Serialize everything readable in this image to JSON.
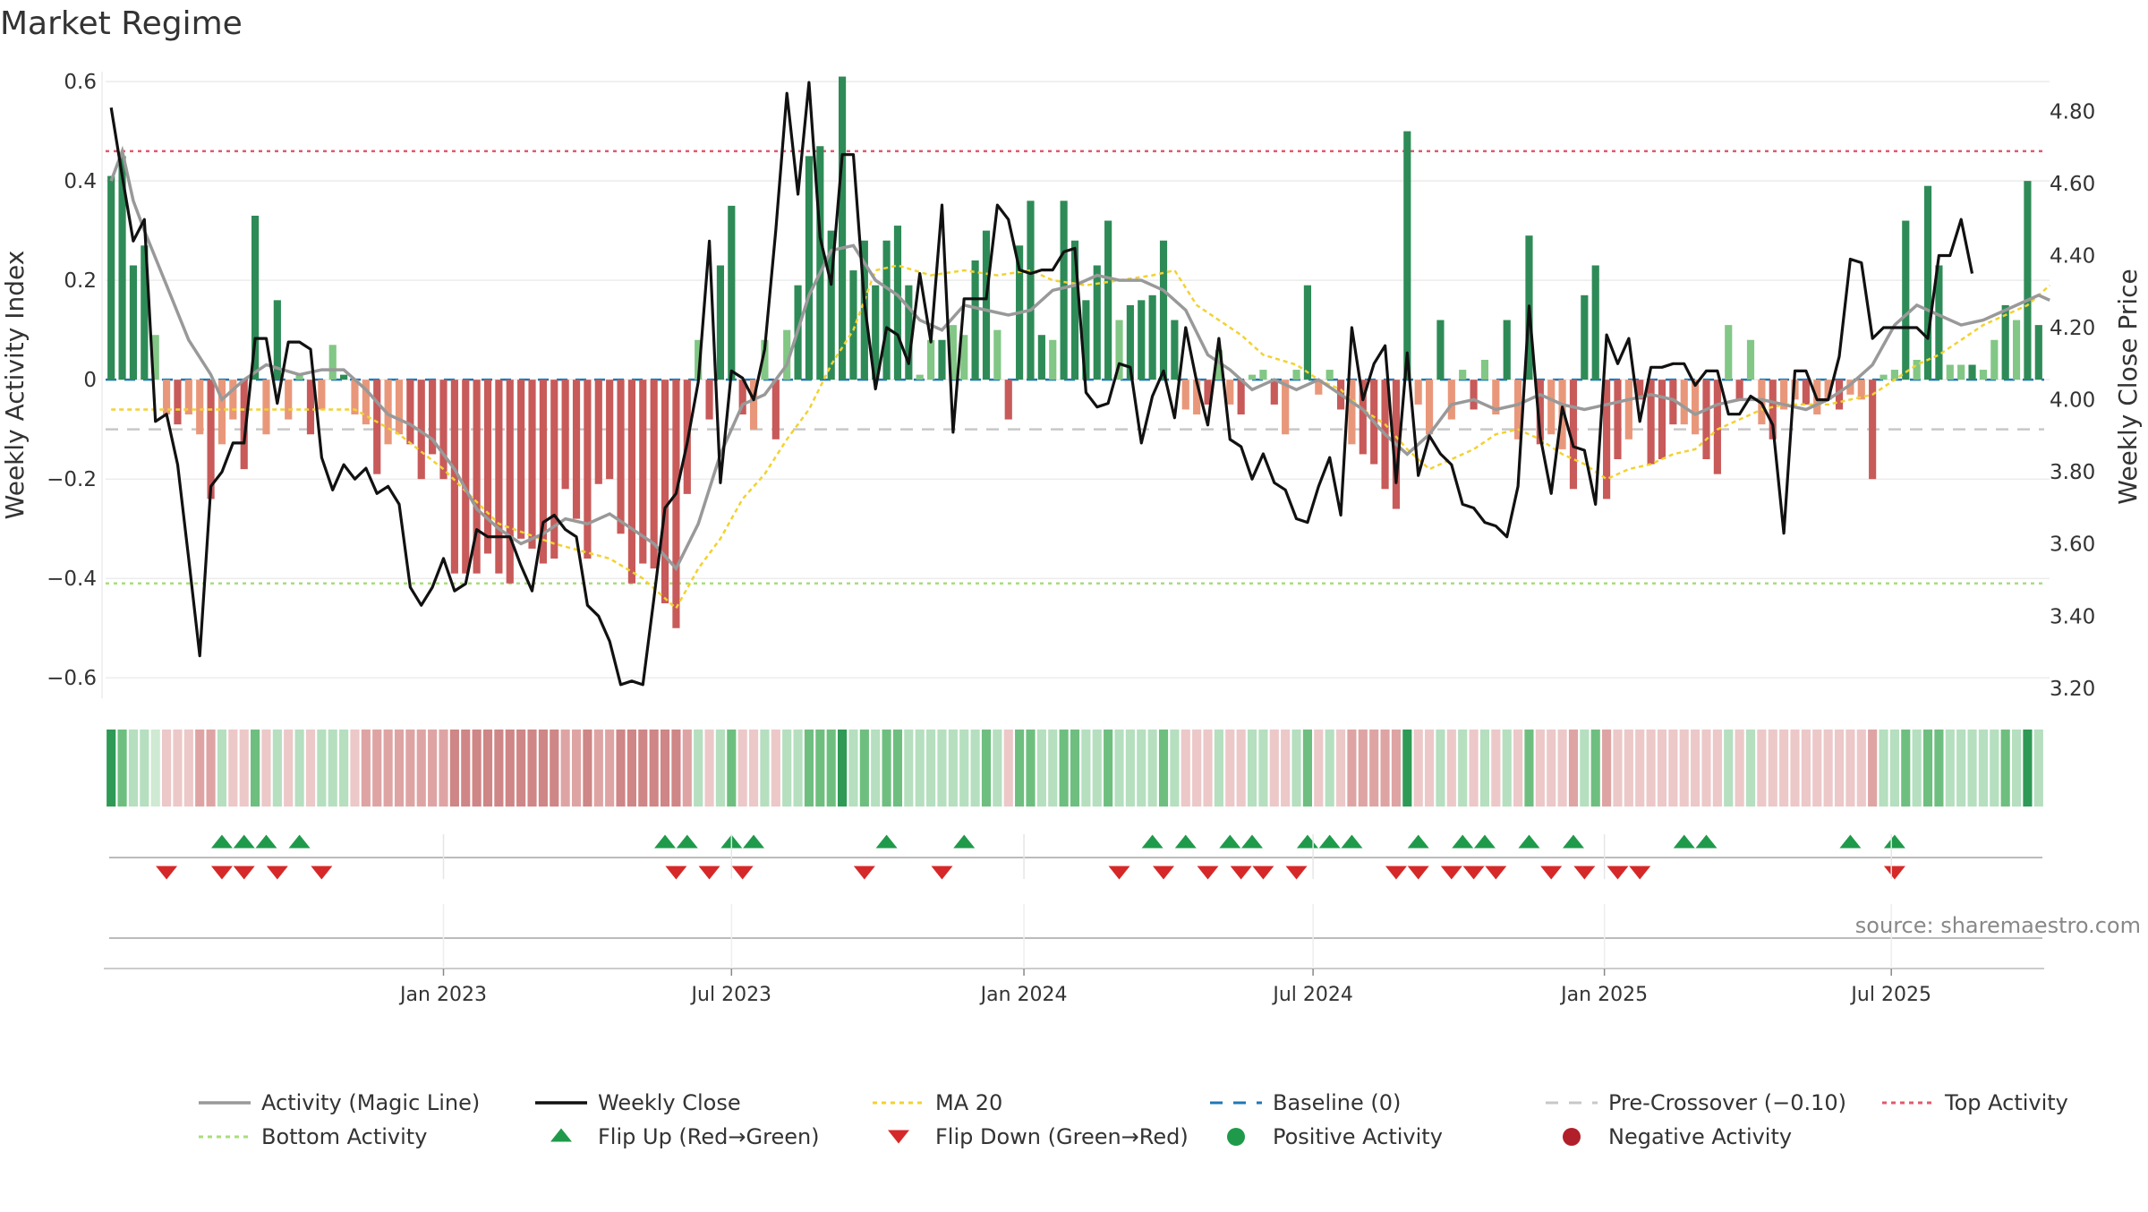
{
  "chart_data": {
    "type": "bar",
    "title": "Market Regime",
    "ylabel": "Weekly Activity Index",
    "ylabel_right": "Weekly Close Price",
    "source": "source: sharemaestro.com",
    "ylim": [
      -0.65,
      0.62
    ],
    "ylim_right": [
      3.16,
      4.91
    ],
    "yticks": [
      -0.6,
      -0.4,
      -0.2,
      0,
      0.2,
      0.4,
      0.6
    ],
    "ytick_labels": [
      "−0.6",
      "−0.4",
      "−0.2",
      "0",
      "0.2",
      "0.4",
      "0.6"
    ],
    "yticks_right": [
      3.2,
      3.4,
      3.6,
      3.8,
      4.0,
      4.2,
      4.4,
      4.6,
      4.8
    ],
    "ytick_right_labels": [
      "3.20",
      "3.40",
      "3.60",
      "3.80",
      "4.00",
      "4.20",
      "4.40",
      "4.60",
      "4.80"
    ],
    "xticks": [
      {
        "label": "Jan 2023",
        "week": 30.5
      },
      {
        "label": "Jul 2023",
        "week": 56.5
      },
      {
        "label": "Jan 2024",
        "week": 82.9
      },
      {
        "label": "Jul 2024",
        "week": 109
      },
      {
        "label": "Jan 2025",
        "week": 135.3
      },
      {
        "label": "Jul 2025",
        "week": 161.2
      }
    ],
    "reference_lines": {
      "top_activity": 0.46,
      "bottom_activity": -0.41,
      "pre_crossover": -0.1,
      "baseline": 0
    },
    "weekly_activity": [
      0.41,
      0.45,
      0.23,
      0.27,
      0.09,
      -0.07,
      -0.09,
      -0.07,
      -0.11,
      -0.24,
      -0.13,
      -0.08,
      -0.18,
      0.33,
      -0.11,
      0.16,
      -0.08,
      0.01,
      -0.11,
      -0.06,
      0.07,
      0.01,
      -0.07,
      -0.09,
      -0.19,
      -0.13,
      -0.11,
      -0.13,
      -0.2,
      -0.15,
      -0.2,
      -0.39,
      -0.39,
      -0.39,
      -0.35,
      -0.39,
      -0.41,
      -0.32,
      -0.34,
      -0.37,
      -0.36,
      -0.22,
      -0.28,
      -0.36,
      -0.21,
      -0.2,
      -0.31,
      -0.41,
      -0.37,
      -0.38,
      -0.45,
      -0.5,
      -0.23,
      0.08,
      -0.08,
      0.23,
      0.35,
      -0.07,
      -0.1,
      0.08,
      -0.12,
      0.1,
      0.19,
      0.45,
      0.47,
      0.3,
      0.61,
      0.22,
      0.28,
      0.19,
      0.28,
      0.31,
      0.19,
      0.01,
      0.08,
      0.08,
      0.11,
      0.09,
      0.24,
      0.3,
      0.1,
      -0.08,
      0.27,
      0.36,
      0.09,
      0.08,
      0.36,
      0.28,
      0.16,
      0.23,
      0.32,
      0.12,
      0.15,
      0.16,
      0.17,
      0.28,
      0.12,
      -0.06,
      -0.07,
      -0.05,
      0.06,
      -0.05,
      -0.07,
      0.01,
      0.02,
      -0.05,
      -0.11,
      0.02,
      0.19,
      -0.03,
      0.02,
      -0.06,
      -0.13,
      -0.15,
      -0.17,
      -0.22,
      -0.26,
      0.5,
      -0.05,
      -0.11,
      0.12,
      -0.08,
      0.02,
      -0.06,
      0.04,
      -0.07,
      0.12,
      -0.12,
      0.29,
      -0.13,
      -0.11,
      -0.14,
      -0.22,
      0.17,
      0.23,
      -0.24,
      -0.16,
      -0.12,
      -0.04,
      -0.17,
      -0.16,
      -0.09,
      -0.09,
      -0.11,
      -0.16,
      -0.19,
      0.11,
      -0.04,
      0.08,
      -0.09,
      -0.12,
      -0.06,
      -0.04,
      -0.05,
      -0.07,
      -0.04,
      -0.06,
      -0.03,
      -0.04,
      -0.2,
      0.01,
      0.02,
      0.32,
      0.04,
      0.39,
      0.23,
      0.03,
      0.03,
      0.03,
      0.02,
      0.08,
      0.15,
      0.12,
      0.4,
      0.11
    ],
    "weekly_close": [
      4.81,
      4.62,
      4.44,
      4.5,
      3.94,
      3.96,
      3.82,
      3.56,
      3.29,
      3.76,
      3.8,
      3.88,
      3.88,
      4.17,
      4.17,
      3.99,
      4.16,
      4.16,
      4.14,
      3.84,
      3.75,
      3.82,
      3.78,
      3.81,
      3.74,
      3.76,
      3.71,
      3.48,
      3.43,
      3.48,
      3.56,
      3.47,
      3.49,
      3.64,
      3.62,
      3.62,
      3.62,
      3.54,
      3.47,
      3.66,
      3.68,
      3.64,
      3.62,
      3.43,
      3.4,
      3.33,
      3.21,
      3.22,
      3.21,
      3.45,
      3.7,
      3.74,
      3.88,
      4.05,
      4.44,
      3.77,
      4.08,
      4.06,
      4.0,
      4.14,
      4.47,
      4.85,
      4.57,
      4.88,
      4.45,
      4.32,
      4.68,
      4.68,
      4.27,
      4.03,
      4.2,
      4.18,
      4.1,
      4.35,
      4.16,
      4.54,
      3.91,
      4.28,
      4.28,
      4.28,
      4.54,
      4.5,
      4.36,
      4.35,
      4.36,
      4.36,
      4.41,
      4.42,
      4.02,
      3.98,
      3.99,
      4.1,
      4.09,
      3.88,
      4.01,
      4.08,
      3.95,
      4.2,
      4.05,
      3.93,
      4.17,
      3.89,
      3.87,
      3.78,
      3.85,
      3.77,
      3.75,
      3.67,
      3.66,
      3.76,
      3.84,
      3.68,
      4.2,
      4.0,
      4.1,
      4.15,
      3.77,
      4.13,
      3.79,
      3.9,
      3.85,
      3.82,
      3.71,
      3.7,
      3.66,
      3.65,
      3.62,
      3.76,
      4.26,
      3.9,
      3.74,
      3.98,
      3.87,
      3.86,
      3.71,
      4.18,
      4.1,
      4.17,
      3.94,
      4.09,
      4.09,
      4.1,
      4.1,
      4.04,
      4.08,
      4.08,
      3.96,
      3.96,
      4.01,
      3.99,
      3.93,
      3.63,
      4.08,
      4.08,
      4.0,
      4.0,
      4.12,
      4.39,
      4.38,
      4.17,
      4.2,
      4.2,
      4.2,
      4.2,
      4.17,
      4.4,
      4.4,
      4.5,
      4.35
    ],
    "magic_line_points": [
      [
        0,
        0.4
      ],
      [
        1,
        0.46
      ],
      [
        2,
        0.36
      ],
      [
        3,
        0.3
      ],
      [
        5,
        0.19
      ],
      [
        7,
        0.08
      ],
      [
        9,
        0.01
      ],
      [
        10,
        -0.04
      ],
      [
        12,
        0.0
      ],
      [
        14,
        0.03
      ],
      [
        17,
        0.01
      ],
      [
        19,
        0.02
      ],
      [
        21,
        0.02
      ],
      [
        23,
        -0.02
      ],
      [
        25,
        -0.07
      ],
      [
        27,
        -0.09
      ],
      [
        29,
        -0.12
      ],
      [
        31,
        -0.18
      ],
      [
        33,
        -0.26
      ],
      [
        35,
        -0.3
      ],
      [
        37,
        -0.33
      ],
      [
        39,
        -0.31
      ],
      [
        41,
        -0.28
      ],
      [
        43,
        -0.29
      ],
      [
        45,
        -0.27
      ],
      [
        47,
        -0.3
      ],
      [
        49,
        -0.33
      ],
      [
        51,
        -0.38
      ],
      [
        53,
        -0.29
      ],
      [
        55,
        -0.15
      ],
      [
        57,
        -0.05
      ],
      [
        59,
        -0.03
      ],
      [
        61,
        0.03
      ],
      [
        63,
        0.17
      ],
      [
        65,
        0.26
      ],
      [
        67,
        0.27
      ],
      [
        69,
        0.2
      ],
      [
        71,
        0.17
      ],
      [
        73,
        0.12
      ],
      [
        75,
        0.1
      ],
      [
        77,
        0.15
      ],
      [
        79,
        0.14
      ],
      [
        81,
        0.13
      ],
      [
        83,
        0.14
      ],
      [
        85,
        0.18
      ],
      [
        87,
        0.19
      ],
      [
        89,
        0.21
      ],
      [
        91,
        0.2
      ],
      [
        93,
        0.2
      ],
      [
        95,
        0.18
      ],
      [
        97,
        0.14
      ],
      [
        99,
        0.05
      ],
      [
        101,
        0.02
      ],
      [
        103,
        -0.02
      ],
      [
        105,
        0.0
      ],
      [
        107,
        -0.02
      ],
      [
        109,
        0.0
      ],
      [
        111,
        -0.03
      ],
      [
        113,
        -0.06
      ],
      [
        115,
        -0.11
      ],
      [
        117,
        -0.15
      ],
      [
        119,
        -0.11
      ],
      [
        121,
        -0.05
      ],
      [
        123,
        -0.04
      ],
      [
        125,
        -0.06
      ],
      [
        127,
        -0.05
      ],
      [
        129,
        -0.03
      ],
      [
        131,
        -0.05
      ],
      [
        133,
        -0.06
      ],
      [
        135,
        -0.05
      ],
      [
        137,
        -0.04
      ],
      [
        139,
        -0.03
      ],
      [
        141,
        -0.04
      ],
      [
        143,
        -0.07
      ],
      [
        145,
        -0.05
      ],
      [
        147,
        -0.04
      ],
      [
        149,
        -0.04
      ],
      [
        151,
        -0.05
      ],
      [
        153,
        -0.06
      ],
      [
        155,
        -0.04
      ],
      [
        157,
        -0.01
      ],
      [
        159,
        0.03
      ],
      [
        161,
        0.11
      ],
      [
        163,
        0.15
      ],
      [
        165,
        0.13
      ],
      [
        167,
        0.11
      ],
      [
        169,
        0.12
      ],
      [
        171,
        0.14
      ],
      [
        173,
        0.16
      ],
      [
        174,
        0.17
      ],
      [
        175,
        0.16
      ]
    ],
    "ma20_points": [
      [
        0,
        -0.06
      ],
      [
        22,
        -0.06
      ],
      [
        26,
        -0.11
      ],
      [
        30,
        -0.18
      ],
      [
        35,
        -0.29
      ],
      [
        40,
        -0.33
      ],
      [
        45,
        -0.36
      ],
      [
        48,
        -0.4
      ],
      [
        50,
        -0.44
      ],
      [
        51,
        -0.46
      ],
      [
        53,
        -0.38
      ],
      [
        55,
        -0.32
      ],
      [
        57,
        -0.24
      ],
      [
        59,
        -0.19
      ],
      [
        61,
        -0.12
      ],
      [
        63,
        -0.06
      ],
      [
        65,
        0.03
      ],
      [
        67,
        0.1
      ],
      [
        68,
        0.16
      ],
      [
        69,
        0.22
      ],
      [
        71,
        0.23
      ],
      [
        74,
        0.21
      ],
      [
        77,
        0.22
      ],
      [
        80,
        0.21
      ],
      [
        83,
        0.22
      ],
      [
        85,
        0.2
      ],
      [
        88,
        0.19
      ],
      [
        91,
        0.2
      ],
      [
        94,
        0.21
      ],
      [
        96,
        0.22
      ],
      [
        98,
        0.15
      ],
      [
        100,
        0.12
      ],
      [
        102,
        0.09
      ],
      [
        104,
        0.05
      ],
      [
        107,
        0.03
      ],
      [
        109,
        0.0
      ],
      [
        111,
        -0.02
      ],
      [
        113,
        -0.06
      ],
      [
        115,
        -0.09
      ],
      [
        117,
        -0.14
      ],
      [
        119,
        -0.18
      ],
      [
        121,
        -0.16
      ],
      [
        123,
        -0.14
      ],
      [
        125,
        -0.11
      ],
      [
        127,
        -0.1
      ],
      [
        129,
        -0.12
      ],
      [
        131,
        -0.15
      ],
      [
        133,
        -0.17
      ],
      [
        135,
        -0.2
      ],
      [
        137,
        -0.18
      ],
      [
        139,
        -0.17
      ],
      [
        141,
        -0.15
      ],
      [
        143,
        -0.14
      ],
      [
        145,
        -0.1
      ],
      [
        147,
        -0.08
      ],
      [
        149,
        -0.06
      ],
      [
        151,
        -0.05
      ],
      [
        153,
        -0.05
      ],
      [
        155,
        -0.05
      ],
      [
        157,
        -0.04
      ],
      [
        159,
        -0.03
      ],
      [
        161,
        0.0
      ],
      [
        163,
        0.03
      ],
      [
        165,
        0.05
      ],
      [
        167,
        0.08
      ],
      [
        169,
        0.11
      ],
      [
        171,
        0.13
      ],
      [
        173,
        0.15
      ],
      [
        175,
        0.19
      ]
    ],
    "regime_strip": [
      3,
      2,
      1,
      1,
      0,
      -1,
      -1,
      -1,
      -2,
      -2,
      1,
      -1,
      -1,
      2,
      -1,
      1,
      -1,
      1,
      -1,
      1,
      1,
      1,
      -1,
      -2,
      -2,
      -2,
      -2,
      -2,
      -2,
      -2,
      -2,
      -3,
      -3,
      -3,
      -3,
      -3,
      -3,
      -3,
      -3,
      -3,
      -3,
      -2,
      -2,
      -3,
      -2,
      -2,
      -3,
      -3,
      -3,
      -3,
      -3,
      -3,
      -2,
      1,
      -1,
      1,
      2,
      -1,
      -1,
      1,
      -1,
      1,
      1,
      2,
      2,
      2,
      3,
      1,
      2,
      1,
      2,
      2,
      1,
      1,
      1,
      1,
      1,
      1,
      1,
      2,
      1,
      -1,
      2,
      2,
      1,
      1,
      2,
      2,
      1,
      1,
      2,
      1,
      1,
      1,
      1,
      2,
      1,
      -1,
      -1,
      -1,
      1,
      -1,
      -1,
      1,
      1,
      -1,
      -1,
      1,
      2,
      -1,
      1,
      -1,
      -2,
      -2,
      -2,
      -2,
      -2,
      3,
      -1,
      -1,
      1,
      -1,
      1,
      -1,
      1,
      -1,
      1,
      -1,
      2,
      -1,
      -1,
      -1,
      -2,
      1,
      2,
      -2,
      -1,
      -1,
      -1,
      -1,
      -1,
      -1,
      -1,
      -1,
      -1,
      -1,
      1,
      -1,
      1,
      -1,
      -1,
      -1,
      -1,
      -1,
      -1,
      -1,
      -1,
      -1,
      -1,
      -2,
      1,
      1,
      2,
      1,
      2,
      2,
      1,
      1,
      1,
      1,
      1,
      2,
      1,
      3,
      1
    ],
    "flip_up_weeks": [
      10,
      12,
      14,
      17,
      50,
      52,
      56,
      58,
      70,
      77,
      94,
      97,
      101,
      103,
      108,
      110,
      112,
      118,
      122,
      124,
      128,
      132,
      142,
      144,
      157,
      161
    ],
    "flip_down_weeks": [
      5,
      10,
      12,
      15,
      19,
      51,
      54,
      57,
      68,
      75,
      91,
      95,
      99,
      102,
      104,
      107,
      116,
      118,
      121,
      123,
      125,
      130,
      133,
      136,
      138,
      161
    ],
    "legend": [
      {
        "key": "magic",
        "label": "Activity (Magic Line)",
        "color": "#999999"
      },
      {
        "key": "close",
        "label": "Weekly Close",
        "color": "#111111"
      },
      {
        "key": "ma20",
        "label": "MA 20",
        "color": "#f2d230"
      },
      {
        "key": "baseline",
        "label": "Baseline (0)",
        "color": "#1f77b4"
      },
      {
        "key": "precross",
        "label": "Pre-Crossover (−0.10)",
        "color": "#c8c8c8"
      },
      {
        "key": "top",
        "label": "Top Activity",
        "color": "#e05a6d"
      },
      {
        "key": "bottom",
        "label": "Bottom Activity",
        "color": "#a9dd7a"
      },
      {
        "key": "flipup",
        "label": "Flip Up (Red→Green)",
        "color": "#1f9a4b"
      },
      {
        "key": "flipdown",
        "label": "Flip Down (Green→Red)",
        "color": "#d62828"
      },
      {
        "key": "pos",
        "label": "Positive Activity",
        "color": "#1f9a4b"
      },
      {
        "key": "neg",
        "label": "Negative Activity",
        "color": "#b11f2a"
      }
    ]
  },
  "colors": {
    "pos_dark": "#2e8b57",
    "pos_light": "#82c785",
    "neg_dark": "#c85a5a",
    "neg_light": "#e9977a",
    "close_line": "#111111",
    "magic_line": "#999999",
    "ma20_line": "#f2d230"
  }
}
